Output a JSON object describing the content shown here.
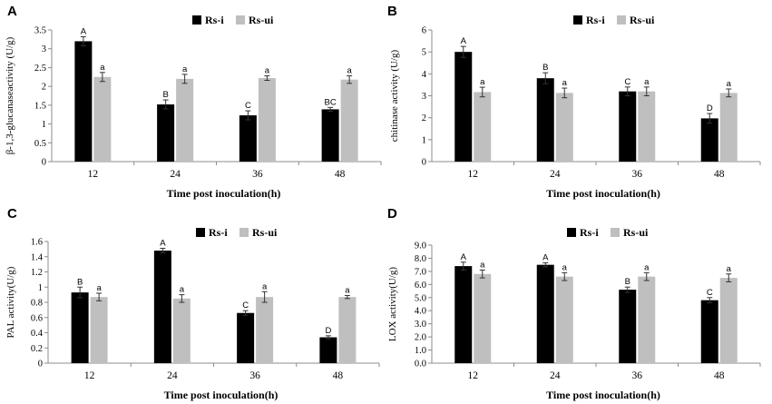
{
  "colors": {
    "infected": "#000000",
    "uninfected": "#bfbfbf"
  },
  "chart_data": [
    {
      "panel": "A",
      "type": "bar",
      "categories": [
        "12",
        "24",
        "36",
        "48"
      ],
      "series": [
        {
          "name": "Rs-i",
          "values": [
            3.2,
            1.52,
            1.23,
            1.39
          ],
          "errors": [
            0.12,
            0.12,
            0.12,
            0.05
          ],
          "labels": [
            "A",
            "B",
            "C",
            "BC"
          ]
        },
        {
          "name": "Rs-ui",
          "values": [
            2.25,
            2.2,
            2.22,
            2.18
          ],
          "errors": [
            0.12,
            0.12,
            0.06,
            0.1
          ],
          "labels": [
            "a",
            "a",
            "a",
            "a"
          ]
        }
      ],
      "xlabel": "Time post inoculation(h)",
      "ylabel": "β-1,3-glucanaseactivity (U/g)",
      "ylim": [
        0,
        3.5
      ],
      "yticks": [
        "0",
        "0.5",
        "1",
        "1.5",
        "2",
        "2.5",
        "3",
        "3.5"
      ]
    },
    {
      "panel": "B",
      "type": "bar",
      "categories": [
        "12",
        "24",
        "36",
        "48"
      ],
      "series": [
        {
          "name": "Rs-i",
          "values": [
            5.0,
            3.8,
            3.2,
            1.97
          ],
          "errors": [
            0.25,
            0.25,
            0.2,
            0.22
          ],
          "labels": [
            "A",
            "B",
            "C",
            "D"
          ]
        },
        {
          "name": "Rs-ui",
          "values": [
            3.17,
            3.13,
            3.2,
            3.13
          ],
          "errors": [
            0.22,
            0.22,
            0.2,
            0.18
          ],
          "labels": [
            "a",
            "a",
            "a",
            "a"
          ]
        }
      ],
      "xlabel": "Time post inoculation(h)",
      "ylabel": "chitinase activity (U/g)",
      "ylim": [
        0,
        6
      ],
      "yticks": [
        "0",
        "1",
        "2",
        "3",
        "4",
        "5",
        "6"
      ]
    },
    {
      "panel": "C",
      "type": "bar",
      "categories": [
        "12",
        "24",
        "36",
        "48"
      ],
      "series": [
        {
          "name": "Rs-i",
          "values": [
            0.93,
            1.48,
            0.66,
            0.34
          ],
          "errors": [
            0.07,
            0.03,
            0.03,
            0.02
          ],
          "labels": [
            "B",
            "A",
            "C",
            "D"
          ]
        },
        {
          "name": "Rs-ui",
          "values": [
            0.87,
            0.85,
            0.87,
            0.87
          ],
          "errors": [
            0.05,
            0.05,
            0.07,
            0.02
          ],
          "labels": [
            "a",
            "a",
            "a",
            "a"
          ]
        }
      ],
      "xlabel": "Time post inoculation(h)",
      "ylabel": "PAL activity(U/g)",
      "ylim": [
        0,
        1.6
      ],
      "yticks": [
        "0",
        "0.2",
        "0.4",
        "0.6",
        "0.8",
        "1",
        "1.2",
        "1.4",
        "1.6"
      ]
    },
    {
      "panel": "D",
      "type": "bar",
      "categories": [
        "12",
        "24",
        "36",
        "48"
      ],
      "series": [
        {
          "name": "Rs-i",
          "values": [
            7.4,
            7.5,
            5.6,
            4.8
          ],
          "errors": [
            0.3,
            0.15,
            0.2,
            0.2
          ],
          "labels": [
            "A",
            "A",
            "B",
            "C"
          ]
        },
        {
          "name": "Rs-ui",
          "values": [
            6.8,
            6.6,
            6.6,
            6.5
          ],
          "errors": [
            0.3,
            0.3,
            0.3,
            0.3
          ],
          "labels": [
            "a",
            "a",
            "a",
            "a"
          ]
        }
      ],
      "xlabel": "Time post inoculation(h)",
      "ylabel": "LOX activity(U/g)",
      "ylim": [
        0,
        9
      ],
      "yticks": [
        "0.0",
        "1.0",
        "2.0",
        "3.0",
        "4.0",
        "5.0",
        "6.0",
        "7.0",
        "8.0",
        "9.0"
      ]
    }
  ]
}
